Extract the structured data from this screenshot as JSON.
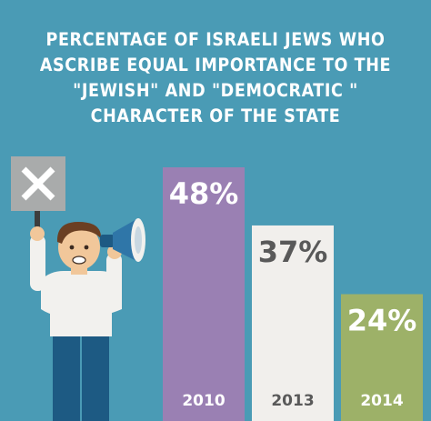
{
  "title_lines": [
    "PERCENTAGE OF ISRAELI JEWS WHO",
    "ASCRIBE EQUAL IMPORTANCE TO THE",
    "\"JEWISH\" AND \"DEMOCRATIC \"",
    "CHARACTER OF THE STATE"
  ],
  "colors": {
    "background": "#4a9bb5",
    "bar_2010": "#9a80b3",
    "bar_2013": "#f1efec",
    "bar_2014": "#9db168",
    "label_on_dark": "#ffffff",
    "label_on_light": "#595959"
  },
  "illustration": {
    "figure": "protester-figure",
    "sign_icon": "x-mark-sign-icon",
    "megaphone_icon": "megaphone-icon"
  },
  "chart_data": {
    "type": "bar",
    "categories": [
      "2010",
      "2013",
      "2014"
    ],
    "values": [
      48,
      37,
      24
    ],
    "value_labels": [
      "48%",
      "37%",
      "24%"
    ],
    "unit": "%",
    "ylim": [
      0,
      48
    ],
    "grid": false,
    "legend": "none"
  }
}
